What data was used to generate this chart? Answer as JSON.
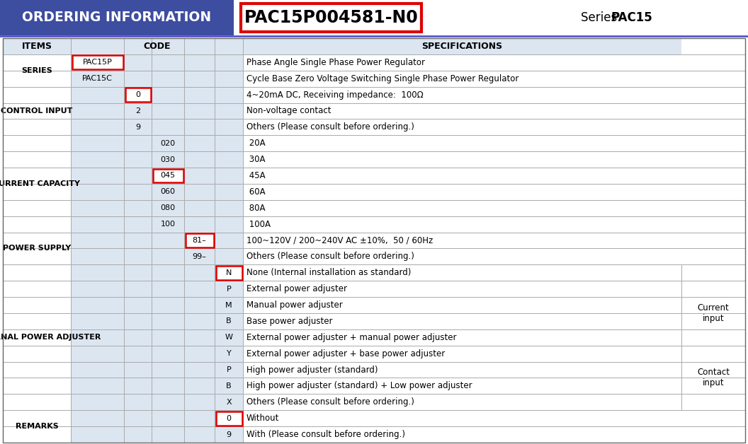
{
  "title_left": "ORDERING INFORMATION",
  "title_center": "PAC15P004581-N0",
  "title_right_prefix": "Series ",
  "title_right_bold": "PAC15",
  "header_bg": "#3d4da0",
  "header_text_color": "#ffffff",
  "light_blue": "#dce6f1",
  "red_box_color": "#dd0000",
  "header_underline_color": "#5555cc",
  "rows": [
    {
      "item": "ITEMS",
      "c1": "",
      "c2": "",
      "c3": "",
      "c4": "",
      "code5": "",
      "spec": "SPECIFICATIONS",
      "right": "",
      "is_header": true
    },
    {
      "item": "SERIES",
      "c1": "PAC15P",
      "c2": "",
      "c3": "",
      "c4": "",
      "code5": "",
      "spec": "Phase Angle Single Phase Power Regulator",
      "right": "",
      "hl_c1": true
    },
    {
      "item": "",
      "c1": "PAC15C",
      "c2": "",
      "c3": "",
      "c4": "",
      "code5": "",
      "spec": "Cycle Base Zero Voltage Switching Single Phase Power Regulator",
      "right": ""
    },
    {
      "item": "CONTROL INPUT",
      "c1": "",
      "c2": "0",
      "c3": "",
      "c4": "",
      "code5": "",
      "spec": "4~20mA DC, Receiving impedance:  100Ω",
      "right": "",
      "hl_c2": true
    },
    {
      "item": "",
      "c1": "",
      "c2": "2",
      "c3": "",
      "c4": "",
      "code5": "",
      "spec": "Non-voltage contact",
      "right": ""
    },
    {
      "item": "",
      "c1": "",
      "c2": "9",
      "c3": "",
      "c4": "",
      "code5": "",
      "spec": "Others (Please consult before ordering.)",
      "right": ""
    },
    {
      "item": "CURRENT CAPACITY",
      "c1": "",
      "c2": "",
      "c3": "020",
      "c4": "",
      "code5": "",
      "spec": " 20A",
      "right": ""
    },
    {
      "item": "",
      "c1": "",
      "c2": "",
      "c3": "030",
      "c4": "",
      "code5": "",
      "spec": " 30A",
      "right": ""
    },
    {
      "item": "",
      "c1": "",
      "c2": "",
      "c3": "045",
      "c4": "",
      "code5": "",
      "spec": " 45A",
      "right": "",
      "hl_c3": true
    },
    {
      "item": "",
      "c1": "",
      "c2": "",
      "c3": "060",
      "c4": "",
      "code5": "",
      "spec": " 60A",
      "right": ""
    },
    {
      "item": "",
      "c1": "",
      "c2": "",
      "c3": "080",
      "c4": "",
      "code5": "",
      "spec": " 80A",
      "right": ""
    },
    {
      "item": "",
      "c1": "",
      "c2": "",
      "c3": "100",
      "c4": "",
      "code5": "",
      "spec": " 100A",
      "right": ""
    },
    {
      "item": "POWER SUPPLY",
      "c1": "",
      "c2": "",
      "c3": "",
      "c4": "81–",
      "code5": "",
      "spec": "100~120V / 200~240V AC ±10%,  50 / 60Hz",
      "right": "",
      "hl_c4": true
    },
    {
      "item": "",
      "c1": "",
      "c2": "",
      "c3": "",
      "c4": "99–",
      "code5": "",
      "spec": "Others (Please consult before ordering.)",
      "right": ""
    },
    {
      "item": "EXTERNAL POWER ADJUSTER",
      "c1": "",
      "c2": "",
      "c3": "",
      "c4": "",
      "code5": "N",
      "spec": "None (Internal installation as standard)",
      "right": "",
      "hl_code5": true
    },
    {
      "item": "",
      "c1": "",
      "c2": "",
      "c3": "",
      "c4": "",
      "code5": "P",
      "spec": "External power adjuster",
      "right": ""
    },
    {
      "item": "",
      "c1": "",
      "c2": "",
      "c3": "",
      "c4": "",
      "code5": "M",
      "spec": "Manual power adjuster",
      "right": "Current\ninput"
    },
    {
      "item": "",
      "c1": "",
      "c2": "",
      "c3": "",
      "c4": "",
      "code5": "B",
      "spec": "Base power adjuster",
      "right": ""
    },
    {
      "item": "",
      "c1": "",
      "c2": "",
      "c3": "",
      "c4": "",
      "code5": "W",
      "spec": "External power adjuster + manual power adjuster",
      "right": ""
    },
    {
      "item": "",
      "c1": "",
      "c2": "",
      "c3": "",
      "c4": "",
      "code5": "Y",
      "spec": "External power adjuster + base power adjuster",
      "right": ""
    },
    {
      "item": "",
      "c1": "",
      "c2": "",
      "c3": "",
      "c4": "",
      "code5": "P",
      "spec": "High power adjuster (standard)",
      "right": "Contact\ninput"
    },
    {
      "item": "",
      "c1": "",
      "c2": "",
      "c3": "",
      "c4": "",
      "code5": "B",
      "spec": "High power adjuster (standard) + Low power adjuster",
      "right": ""
    },
    {
      "item": "",
      "c1": "",
      "c2": "",
      "c3": "",
      "c4": "",
      "code5": "X",
      "spec": "Others (Please consult before ordering.)",
      "right": ""
    },
    {
      "item": "REMARKS",
      "c1": "",
      "c2": "",
      "c3": "",
      "c4": "",
      "code5": "0",
      "spec": "Without",
      "right": "",
      "hl_code5": true
    },
    {
      "item": "",
      "c1": "",
      "c2": "",
      "c3": "",
      "c4": "",
      "code5": "9",
      "spec": "With (Please consult before ordering.)",
      "right": ""
    }
  ],
  "item_groups": [
    [
      1,
      2,
      "SERIES"
    ],
    [
      3,
      5,
      "CONTROL INPUT"
    ],
    [
      6,
      11,
      "CURRENT CAPACITY"
    ],
    [
      12,
      13,
      "POWER SUPPLY"
    ],
    [
      14,
      22,
      "EXTERNAL POWER ADJUSTER"
    ],
    [
      23,
      24,
      "REMARKS"
    ]
  ],
  "right_spans": [
    [
      16,
      17,
      "Current\ninput"
    ],
    [
      20,
      21,
      "Contact\ninput"
    ]
  ]
}
